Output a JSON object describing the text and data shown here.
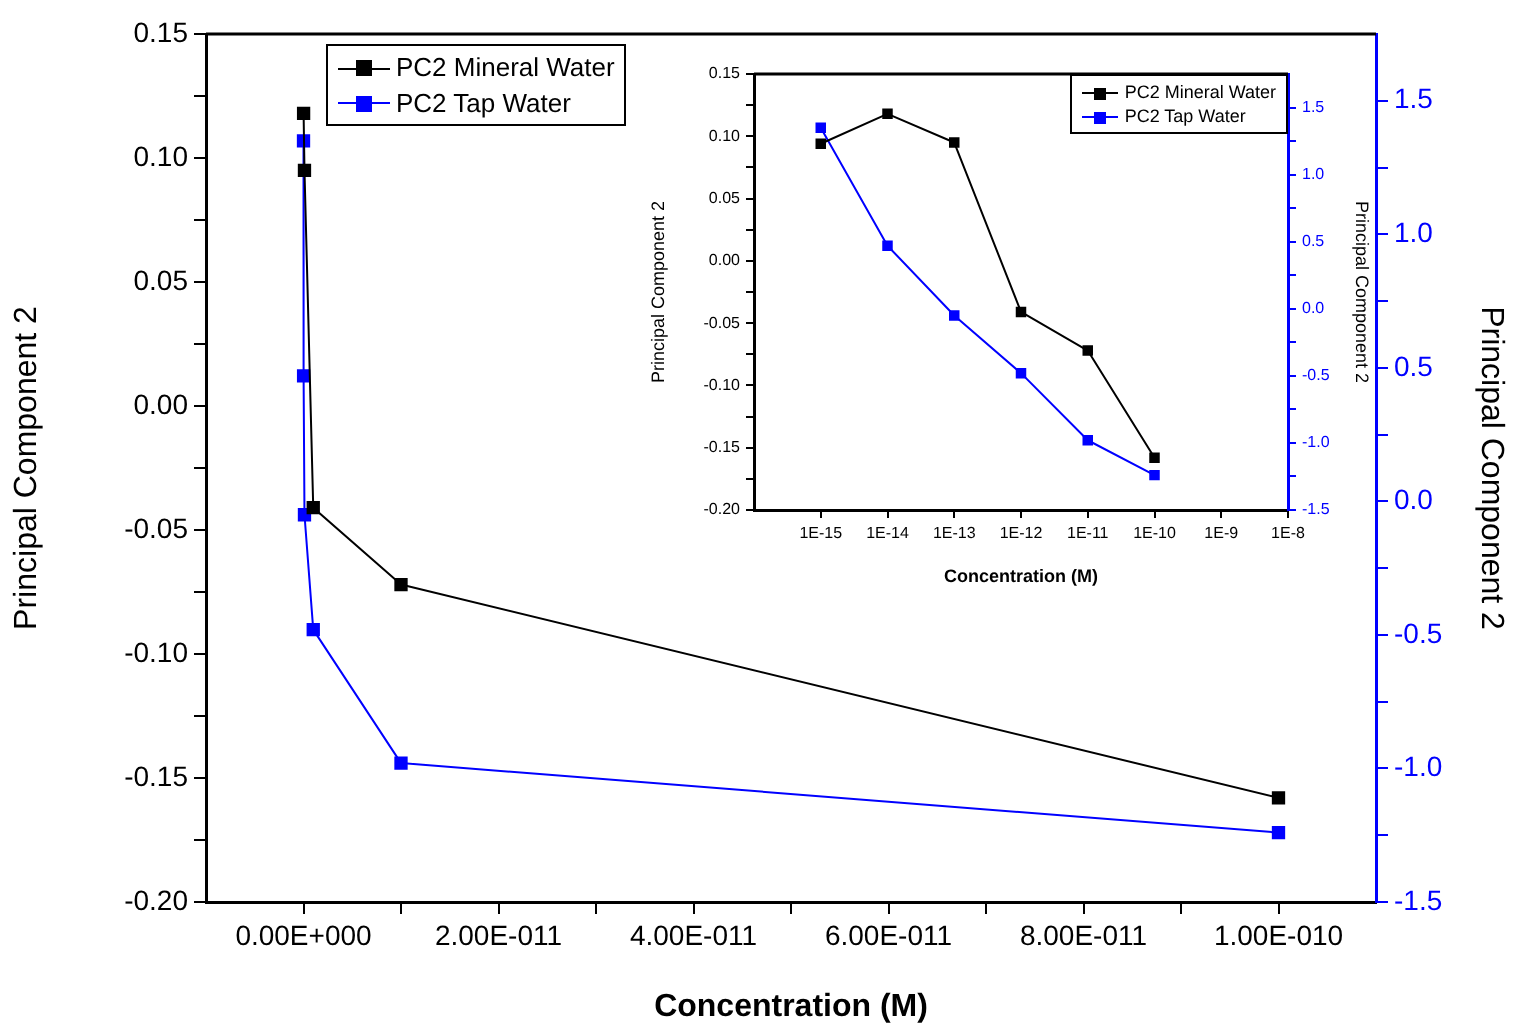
{
  "chart_data": [
    {
      "type": "line",
      "xlabel": "Concentration (M)",
      "ylabel": "Principal Component 2",
      "y2label": "Principal Component 2",
      "marker": "square",
      "legend": "top left",
      "x": [
        1e-15,
        1e-14,
        1e-13,
        1e-12,
        1e-11,
        1e-10
      ],
      "series": [
        {
          "name": "PC2 Mineral Water",
          "color": "#000000",
          "values": [
            null,
            0.118,
            0.095,
            -0.041,
            -0.072,
            -0.158
          ]
        },
        {
          "name": "PC2 Tap Water",
          "color": "#0000ff",
          "axis": "y2",
          "values": [
            1.35,
            0.47,
            -0.05,
            -0.48,
            -0.98,
            -1.24
          ]
        }
      ],
      "xlim": [
        -1e-11,
        1.1e-10
      ],
      "xticks": [
        {
          "value": 0,
          "label": "0.00E+000"
        },
        {
          "value": 1e-11,
          "label": null
        },
        {
          "value": 2e-11,
          "label": "2.00E-011"
        },
        {
          "value": 3e-11,
          "label": null
        },
        {
          "value": 4e-11,
          "label": "4.00E-011"
        },
        {
          "value": 5e-11,
          "label": null
        },
        {
          "value": 6e-11,
          "label": "6.00E-011"
        },
        {
          "value": 7e-11,
          "label": null
        },
        {
          "value": 8e-11,
          "label": "8.00E-011"
        },
        {
          "value": 9e-11,
          "label": null
        },
        {
          "value": 1e-10,
          "label": "1.00E-010"
        }
      ],
      "ylim": [
        -0.2,
        0.15
      ],
      "yticks": [
        {
          "value": -0.2,
          "label": "-0.20"
        },
        {
          "value": -0.175,
          "label": null
        },
        {
          "value": -0.15,
          "label": "-0.15"
        },
        {
          "value": -0.125,
          "label": null
        },
        {
          "value": -0.1,
          "label": "-0.10"
        },
        {
          "value": -0.075,
          "label": null
        },
        {
          "value": -0.05,
          "label": "-0.05"
        },
        {
          "value": -0.025,
          "label": null
        },
        {
          "value": 0,
          "label": "0.00"
        },
        {
          "value": 0.025,
          "label": null
        },
        {
          "value": 0.05,
          "label": "0.05"
        },
        {
          "value": 0.075,
          "label": null
        },
        {
          "value": 0.1,
          "label": "0.10"
        },
        {
          "value": 0.125,
          "label": null
        },
        {
          "value": 0.15,
          "label": "0.15"
        }
      ],
      "y2lim": [
        -1.5,
        1.75
      ],
      "y2ticks": [
        -1.5,
        {
          "value": -1.25,
          "label": null
        },
        {
          "value": -1,
          "label": "-1.0"
        },
        {
          "value": -0.75,
          "label": null
        },
        -0.5,
        {
          "value": -0.25,
          "label": null
        },
        {
          "value": 0,
          "label": "0.0"
        },
        {
          "value": 0.25,
          "label": null
        },
        0.5,
        {
          "value": 0.75,
          "label": null
        },
        {
          "value": 1,
          "label": "1.0"
        },
        {
          "value": 1.25,
          "label": null
        },
        1.5
      ]
    },
    {
      "type": "line",
      "xlabel": "Concentration (M)",
      "ylabel": "Principal Component 2",
      "y2label": "Principal Component 2",
      "marker": "square",
      "legend": "top right",
      "log": "x",
      "x": [
        1e-15,
        1e-14,
        1e-13,
        1e-12,
        1e-11,
        1e-10
      ],
      "series": [
        {
          "name": "PC2 Mineral Water",
          "color": "#000000",
          "values": [
            0.094,
            0.118,
            0.095,
            -0.041,
            -0.072,
            -0.158
          ]
        },
        {
          "name": "PC2 Tap Water",
          "color": "#0000ff",
          "axis": "y2",
          "values": [
            1.35,
            0.47,
            -0.05,
            -0.48,
            -0.98,
            -1.24
          ]
        }
      ],
      "xlim": [
        1e-16,
        1e-08
      ],
      "xticks": [
        {
          "value": 1e-15,
          "label": "1E-15"
        },
        {
          "value": 1e-14,
          "label": "1E-14"
        },
        {
          "value": 1e-13,
          "label": "1E-13"
        },
        {
          "value": 1e-12,
          "label": "1E-12"
        },
        {
          "value": 1e-11,
          "label": "1E-11"
        },
        {
          "value": 1e-10,
          "label": "1E-10"
        },
        {
          "value": 1e-09,
          "label": "1E-9"
        },
        {
          "value": 1e-08,
          "label": "1E-8"
        }
      ],
      "ylim": [
        -0.2,
        0.15
      ],
      "yticks": [
        {
          "value": -0.2,
          "label": "-0.20"
        },
        {
          "value": -0.175,
          "label": null
        },
        {
          "value": -0.15,
          "label": "-0.15"
        },
        {
          "value": -0.125,
          "label": null
        },
        {
          "value": -0.1,
          "label": "-0.10"
        },
        {
          "value": -0.075,
          "label": null
        },
        {
          "value": -0.05,
          "label": "-0.05"
        },
        {
          "value": -0.025,
          "label": null
        },
        {
          "value": 0,
          "label": "0.00"
        },
        {
          "value": 0.025,
          "label": null
        },
        {
          "value": 0.05,
          "label": "0.05"
        },
        {
          "value": 0.075,
          "label": null
        },
        {
          "value": 0.1,
          "label": "0.10"
        },
        {
          "value": 0.125,
          "label": null
        },
        {
          "value": 0.15,
          "label": "0.15"
        }
      ],
      "y2lim": [
        -1.5,
        1.75
      ],
      "y2ticks": [
        -1.5,
        {
          "value": -1.25,
          "label": null
        },
        {
          "value": -1,
          "label": "-1.0"
        },
        {
          "value": -0.75,
          "label": null
        },
        -0.5,
        {
          "value": -0.25,
          "label": null
        },
        {
          "value": 0,
          "label": "0.0"
        },
        {
          "value": 0.25,
          "label": null
        },
        0.5,
        {
          "value": 0.75,
          "label": null
        },
        {
          "value": 1,
          "label": "1.0"
        },
        {
          "value": 1.25,
          "label": null
        },
        1.5
      ]
    }
  ]
}
